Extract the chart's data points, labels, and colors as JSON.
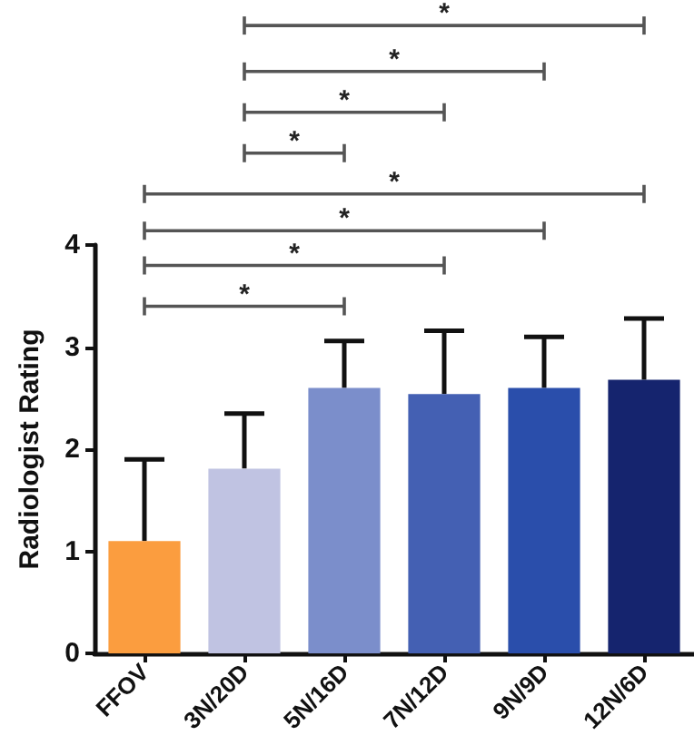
{
  "chart_data": {
    "type": "bar",
    "ylabel": "Radiologist Rating",
    "categories": [
      "FFOV",
      "3N/20D",
      "5N/16D",
      "7N/12D",
      "9N/9D",
      "12N/6D"
    ],
    "values": [
      1.1,
      1.81,
      2.6,
      2.54,
      2.6,
      2.68
    ],
    "colors": [
      "#fb9d3f",
      "#c0c3e2",
      "#7b8ecb",
      "#4460b3",
      "#2a4eab",
      "#15246e"
    ],
    "errors": [
      [
        1.1,
        1.9
      ],
      [
        1.81,
        2.35
      ],
      [
        2.6,
        3.06
      ],
      [
        2.54,
        3.16
      ],
      [
        2.6,
        3.1
      ],
      [
        2.68,
        3.28
      ]
    ],
    "ylim": [
      0,
      4
    ],
    "yticks": [
      0,
      1,
      2,
      3,
      4
    ],
    "grid": false,
    "annotations": [
      "*",
      "*",
      "*",
      "*",
      "*",
      "*",
      "*",
      "*"
    ]
  }
}
